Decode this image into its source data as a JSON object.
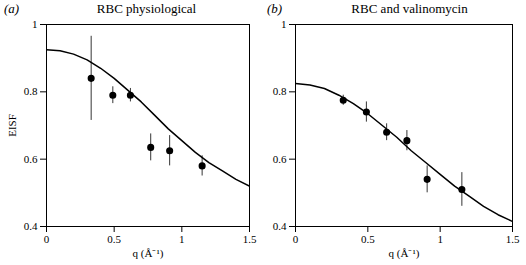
{
  "chart_data": [
    {
      "type": "scatter",
      "panel": "(a)",
      "title": "RBC physiological",
      "x_label": "q (Å⁻¹)",
      "y_label": "EISF",
      "x": [
        0.33,
        0.49,
        0.62,
        0.77,
        0.91,
        1.15
      ],
      "values": [
        0.84,
        0.79,
        0.79,
        0.635,
        0.625,
        0.58
      ],
      "error": [
        0.125,
        0.025,
        0.02,
        0.04,
        0.045,
        0.03
      ],
      "fit": {
        "x": [
          0,
          0.1,
          0.2,
          0.3,
          0.4,
          0.5,
          0.6,
          0.7,
          0.8,
          0.9,
          1.0,
          1.1,
          1.2,
          1.3,
          1.4,
          1.5
        ],
        "values": [
          0.925,
          0.922,
          0.912,
          0.895,
          0.87,
          0.84,
          0.805,
          0.77,
          0.73,
          0.69,
          0.655,
          0.62,
          0.59,
          0.565,
          0.54,
          0.52
        ]
      },
      "color": "#000000",
      "marker": "circle",
      "line_style": "solid",
      "xlim": [
        0,
        1.5
      ],
      "xticks": [
        0,
        0.5,
        1,
        1.5
      ],
      "ylim": [
        0.4,
        1
      ],
      "yticks": [
        0.4,
        0.6,
        0.8,
        1
      ],
      "grid": false
    },
    {
      "type": "scatter",
      "panel": "(b)",
      "title": "RBC and valinomycin",
      "x_label": "q (Å⁻¹)",
      "x": [
        0.33,
        0.49,
        0.63,
        0.77,
        0.91,
        1.15
      ],
      "values": [
        0.775,
        0.74,
        0.68,
        0.655,
        0.54,
        0.51
      ],
      "error": [
        0.015,
        0.03,
        0.025,
        0.03,
        0.04,
        0.05
      ],
      "fit": {
        "x": [
          0,
          0.1,
          0.2,
          0.3,
          0.4,
          0.5,
          0.6,
          0.7,
          0.8,
          0.9,
          1.0,
          1.1,
          1.2,
          1.3,
          1.4,
          1.5
        ],
        "values": [
          0.825,
          0.82,
          0.81,
          0.79,
          0.765,
          0.735,
          0.7,
          0.665,
          0.625,
          0.59,
          0.555,
          0.52,
          0.49,
          0.46,
          0.435,
          0.415
        ]
      },
      "color": "#000000",
      "marker": "circle",
      "line_style": "solid",
      "xlim": [
        0,
        1.5
      ],
      "xticks": [
        0,
        0.5,
        1,
        1.5
      ],
      "ylim": [
        0.4,
        1
      ],
      "yticks": [
        0.4,
        0.6,
        0.8,
        1
      ],
      "grid": false
    }
  ]
}
